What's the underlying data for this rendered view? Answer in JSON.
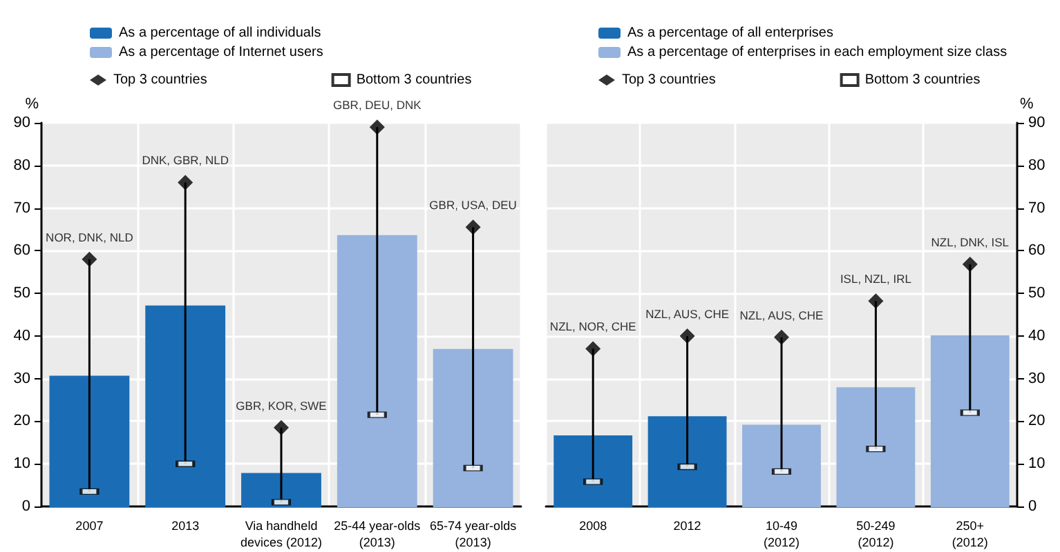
{
  "chart_data": [
    {
      "type": "bar",
      "stacked": true,
      "categories": [
        "2007",
        "2013",
        "Via handheld\ndevices (2012)",
        "25-44 year-olds\n(2013)",
        "65-74 year-olds\n(2013)"
      ],
      "ylabel": "%",
      "ylim": [
        0,
        90
      ],
      "yticks": [
        0,
        10,
        20,
        30,
        40,
        50,
        60,
        70,
        80,
        90
      ],
      "grid": true,
      "legend": "top",
      "series": [
        {
          "name": "As a percentage of all individuals",
          "color": "#1a6db5",
          "values": [
            30.5,
            47,
            7.7,
            null,
            null
          ]
        },
        {
          "name": "As a percentage of Internet users",
          "color": "#95b3de",
          "values": [
            null,
            null,
            null,
            63.5,
            36.8
          ]
        },
        {
          "name": "Top 3 countries",
          "type": "scatter",
          "marker": "diamond",
          "color": "#000000",
          "values": [
            58,
            76,
            18.5,
            89,
            65.5
          ],
          "value_labels": [
            "NOR, DNK, NLD",
            "DNK, GBR, NLD",
            "GBR, KOR, SWE",
            "GBR, DEU, DNK",
            "GBR, USA, DEU"
          ]
        },
        {
          "name": "Bottom 3 countries",
          "type": "scatter",
          "marker": "square",
          "color": "#000000",
          "values": [
            3.5,
            10,
            1,
            21.5,
            9
          ]
        }
      ]
    },
    {
      "type": "bar",
      "stacked": true,
      "categories": [
        "2008",
        "2012",
        "10-49\n(2012)",
        "50-249\n(2012)",
        "250+\n(2012)"
      ],
      "y2label": "%",
      "y2lim": [
        0,
        90
      ],
      "y2ticks": [
        0,
        10,
        20,
        30,
        40,
        50,
        60,
        70,
        80,
        90
      ],
      "grid": true,
      "legend": "top",
      "series": [
        {
          "name": "As a percentage of all enterprises",
          "color": "#1a6db5",
          "axis": "y2",
          "values": [
            16.5,
            21,
            null,
            null,
            null
          ]
        },
        {
          "name": "As a percentage of enterprises in each employment size class",
          "color": "#95b3de",
          "axis": "y2",
          "values": [
            null,
            null,
            19,
            27.8,
            40
          ]
        },
        {
          "name": "Top 3 countries",
          "type": "scatter",
          "marker": "diamond",
          "color": "#000000",
          "axis": "y2",
          "values": [
            37,
            40,
            39.7,
            48.2,
            56.8
          ],
          "value_labels": [
            "NZL, NOR, CHE",
            "NZL, AUS, CHE",
            "NZL, AUS, CHE",
            "ISL, NZL, IRL",
            "NZL, DNK, ISL"
          ]
        },
        {
          "name": "Bottom 3 countries",
          "type": "scatter",
          "marker": "square",
          "color": "#000000",
          "axis": "y2",
          "values": [
            5.8,
            9.3,
            8.2,
            13.5,
            22
          ]
        }
      ]
    }
  ]
}
